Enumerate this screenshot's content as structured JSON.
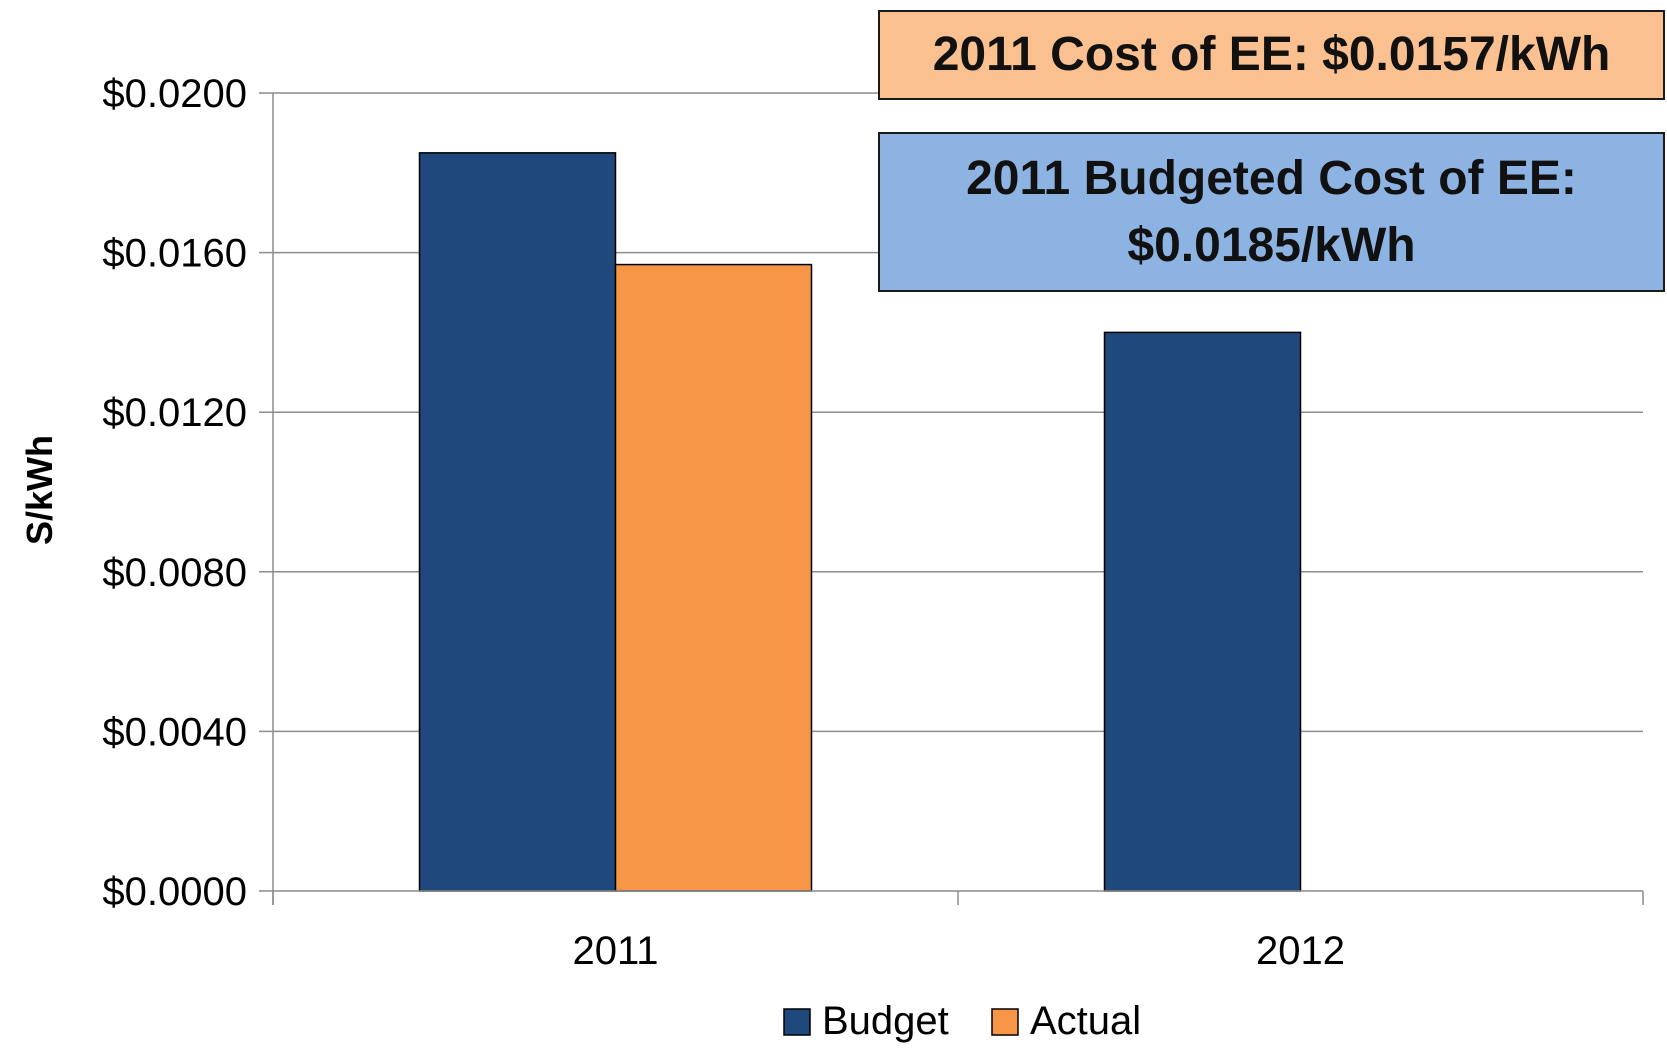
{
  "chart_data": {
    "type": "bar",
    "categories": [
      "2011",
      "2012"
    ],
    "series": [
      {
        "name": "Budget",
        "color": "#1f497d",
        "values": [
          0.0185,
          0.014
        ]
      },
      {
        "name": "Actual",
        "color": "#f79646",
        "values": [
          0.0157,
          null
        ]
      }
    ],
    "title": "",
    "xlabel": "",
    "ylabel": "S/kWh",
    "ylim": [
      0,
      0.02
    ],
    "yticks": [
      0.0,
      0.004,
      0.008,
      0.012,
      0.016,
      0.02
    ],
    "ytick_labels": [
      "$0.0000",
      "$0.0040",
      "$0.0080",
      "$0.0120",
      "$0.0160",
      "$0.0200"
    ],
    "grid": true,
    "legend_position": "bottom",
    "annotations": [
      {
        "text": "2011 Cost of EE: $0.0157/kWh",
        "color": "#fac090"
      },
      {
        "lines": [
          "2011 Budgeted Cost of EE:",
          "$0.0185/kWh"
        ],
        "color": "#8db3e2"
      }
    ]
  }
}
